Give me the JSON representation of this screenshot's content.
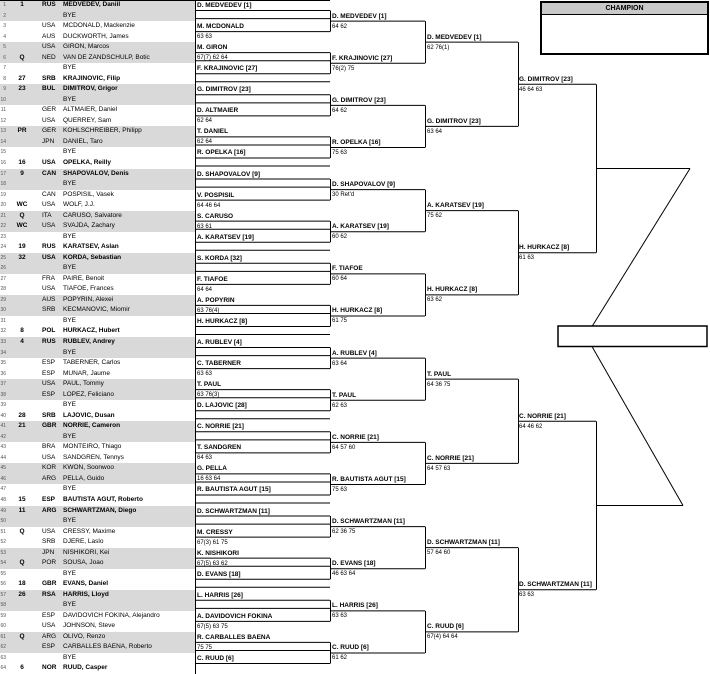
{
  "champion_box": {
    "label": "CHAMPION",
    "winner": ""
  },
  "final_box": {
    "text": ""
  },
  "colors": {
    "row_shade": "#d9d9d9",
    "champion_header_bg": "#c9c9c9",
    "line": "#000000"
  },
  "draw": {
    "entries": [
      {
        "line": 1,
        "seed": "1",
        "country": "RUS",
        "name": "MEDVEDEV, Daniil",
        "seeded": true
      },
      {
        "line": 2,
        "seed": "",
        "country": "",
        "name": "BYE",
        "seeded": false
      },
      {
        "line": 3,
        "seed": "",
        "country": "USA",
        "name": "MCDONALD, Mackenzie",
        "seeded": false
      },
      {
        "line": 4,
        "seed": "",
        "country": "AUS",
        "name": "DUCKWORTH, James",
        "seeded": false
      },
      {
        "line": 5,
        "seed": "",
        "country": "USA",
        "name": "GIRON, Marcos",
        "seeded": false
      },
      {
        "line": 6,
        "seed": "Q",
        "country": "NED",
        "name": "VAN DE ZANDSCHULP, Botic",
        "seeded": false
      },
      {
        "line": 7,
        "seed": "",
        "country": "",
        "name": "BYE",
        "seeded": false
      },
      {
        "line": 8,
        "seed": "27",
        "country": "SRB",
        "name": "KRAJINOVIC, Filip",
        "seeded": true
      },
      {
        "line": 9,
        "seed": "23",
        "country": "BUL",
        "name": "DIMITROV, Grigor",
        "seeded": true
      },
      {
        "line": 10,
        "seed": "",
        "country": "",
        "name": "BYE",
        "seeded": false
      },
      {
        "line": 11,
        "seed": "",
        "country": "GER",
        "name": "ALTMAIER, Daniel",
        "seeded": false
      },
      {
        "line": 12,
        "seed": "",
        "country": "USA",
        "name": "QUERREY, Sam",
        "seeded": false
      },
      {
        "line": 13,
        "seed": "PR",
        "country": "GER",
        "name": "KOHLSCHREIBER, Philipp",
        "seeded": false
      },
      {
        "line": 14,
        "seed": "",
        "country": "JPN",
        "name": "DANIEL, Taro",
        "seeded": false
      },
      {
        "line": 15,
        "seed": "",
        "country": "",
        "name": "BYE",
        "seeded": false
      },
      {
        "line": 16,
        "seed": "16",
        "country": "USA",
        "name": "OPELKA, Reilly",
        "seeded": true
      },
      {
        "line": 17,
        "seed": "9",
        "country": "CAN",
        "name": "SHAPOVALOV, Denis",
        "seeded": true
      },
      {
        "line": 18,
        "seed": "",
        "country": "",
        "name": "BYE",
        "seeded": false
      },
      {
        "line": 19,
        "seed": "",
        "country": "CAN",
        "name": "POSPISIL, Vasek",
        "seeded": false
      },
      {
        "line": 20,
        "seed": "WC",
        "country": "USA",
        "name": "WOLF, J.J.",
        "seeded": false
      },
      {
        "line": 21,
        "seed": "Q",
        "country": "ITA",
        "name": "CARUSO, Salvatore",
        "seeded": false
      },
      {
        "line": 22,
        "seed": "WC",
        "country": "USA",
        "name": "SVAJDA, Zachary",
        "seeded": false
      },
      {
        "line": 23,
        "seed": "",
        "country": "",
        "name": "BYE",
        "seeded": false
      },
      {
        "line": 24,
        "seed": "19",
        "country": "RUS",
        "name": "KARATSEV, Aslan",
        "seeded": true
      },
      {
        "line": 25,
        "seed": "32",
        "country": "USA",
        "name": "KORDA, Sebastian",
        "seeded": true
      },
      {
        "line": 26,
        "seed": "",
        "country": "",
        "name": "BYE",
        "seeded": false
      },
      {
        "line": 27,
        "seed": "",
        "country": "FRA",
        "name": "PAIRE, Benoit",
        "seeded": false
      },
      {
        "line": 28,
        "seed": "",
        "country": "USA",
        "name": "TIAFOE, Frances",
        "seeded": false
      },
      {
        "line": 29,
        "seed": "",
        "country": "AUS",
        "name": "POPYRIN, Alexei",
        "seeded": false
      },
      {
        "line": 30,
        "seed": "",
        "country": "SRB",
        "name": "KECMANOVIC, Miomir",
        "seeded": false
      },
      {
        "line": 31,
        "seed": "",
        "country": "",
        "name": "BYE",
        "seeded": false
      },
      {
        "line": 32,
        "seed": "8",
        "country": "POL",
        "name": "HURKACZ, Hubert",
        "seeded": true
      },
      {
        "line": 33,
        "seed": "4",
        "country": "RUS",
        "name": "RUBLEV, Andrey",
        "seeded": true
      },
      {
        "line": 34,
        "seed": "",
        "country": "",
        "name": "BYE",
        "seeded": false
      },
      {
        "line": 35,
        "seed": "",
        "country": "ESP",
        "name": "TABERNER, Carlos",
        "seeded": false
      },
      {
        "line": 36,
        "seed": "",
        "country": "ESP",
        "name": "MUNAR, Jaume",
        "seeded": false
      },
      {
        "line": 37,
        "seed": "",
        "country": "USA",
        "name": "PAUL, Tommy",
        "seeded": false
      },
      {
        "line": 38,
        "seed": "",
        "country": "ESP",
        "name": "LOPEZ, Feliciano",
        "seeded": false
      },
      {
        "line": 39,
        "seed": "",
        "country": "",
        "name": "BYE",
        "seeded": false
      },
      {
        "line": 40,
        "seed": "28",
        "country": "SRB",
        "name": "LAJOVIC, Dusan",
        "seeded": true
      },
      {
        "line": 41,
        "seed": "21",
        "country": "GBR",
        "name": "NORRIE, Cameron",
        "seeded": true
      },
      {
        "line": 42,
        "seed": "",
        "country": "",
        "name": "BYE",
        "seeded": false
      },
      {
        "line": 43,
        "seed": "",
        "country": "BRA",
        "name": "MONTEIRO, Thiago",
        "seeded": false
      },
      {
        "line": 44,
        "seed": "",
        "country": "USA",
        "name": "SANDGREN, Tennys",
        "seeded": false
      },
      {
        "line": 45,
        "seed": "",
        "country": "KOR",
        "name": "KWON, Soonwoo",
        "seeded": false
      },
      {
        "line": 46,
        "seed": "",
        "country": "ARG",
        "name": "PELLA, Guido",
        "seeded": false
      },
      {
        "line": 47,
        "seed": "",
        "country": "",
        "name": "BYE",
        "seeded": false
      },
      {
        "line": 48,
        "seed": "15",
        "country": "ESP",
        "name": "BAUTISTA AGUT, Roberto",
        "seeded": true
      },
      {
        "line": 49,
        "seed": "11",
        "country": "ARG",
        "name": "SCHWARTZMAN, Diego",
        "seeded": true
      },
      {
        "line": 50,
        "seed": "",
        "country": "",
        "name": "BYE",
        "seeded": false
      },
      {
        "line": 51,
        "seed": "Q",
        "country": "USA",
        "name": "CRESSY, Maxime",
        "seeded": false
      },
      {
        "line": 52,
        "seed": "",
        "country": "SRB",
        "name": "DJERE, Laslo",
        "seeded": false
      },
      {
        "line": 53,
        "seed": "",
        "country": "JPN",
        "name": "NISHIKORI, Kei",
        "seeded": false
      },
      {
        "line": 54,
        "seed": "Q",
        "country": "POR",
        "name": "SOUSA, Joao",
        "seeded": false
      },
      {
        "line": 55,
        "seed": "",
        "country": "",
        "name": "BYE",
        "seeded": false
      },
      {
        "line": 56,
        "seed": "18",
        "country": "GBR",
        "name": "EVANS, Daniel",
        "seeded": true
      },
      {
        "line": 57,
        "seed": "26",
        "country": "RSA",
        "name": "HARRIS, Lloyd",
        "seeded": true
      },
      {
        "line": 58,
        "seed": "",
        "country": "",
        "name": "BYE",
        "seeded": false
      },
      {
        "line": 59,
        "seed": "",
        "country": "ESP",
        "name": "DAVIDOVICH FOKINA, Alejandro",
        "seeded": false
      },
      {
        "line": 60,
        "seed": "",
        "country": "USA",
        "name": "JOHNSON, Steve",
        "seeded": false
      },
      {
        "line": 61,
        "seed": "Q",
        "country": "ARG",
        "name": "OLIVO, Renzo",
        "seeded": false
      },
      {
        "line": 62,
        "seed": "",
        "country": "ESP",
        "name": "CARBALLES BAENA, Roberto",
        "seeded": false
      },
      {
        "line": 63,
        "seed": "",
        "country": "",
        "name": "BYE",
        "seeded": false
      },
      {
        "line": 64,
        "seed": "6",
        "country": "NOR",
        "name": "RUUD, Casper",
        "seeded": true
      }
    ],
    "round2": [
      {
        "name": "D. MEDVEDEV [1]",
        "score": ""
      },
      {
        "name": "M. MCDONALD",
        "score": "63 63"
      },
      {
        "name": "M. GIRON",
        "score": "67(7) 62 64"
      },
      {
        "name": "F. KRAJINOVIC [27]",
        "score": ""
      },
      {
        "name": "G. DIMITROV [23]",
        "score": ""
      },
      {
        "name": "D. ALTMAIER",
        "score": "62 64"
      },
      {
        "name": "T. DANIEL",
        "score": "62 64"
      },
      {
        "name": "R. OPELKA [16]",
        "score": ""
      },
      {
        "name": "D. SHAPOVALOV [9]",
        "score": ""
      },
      {
        "name": "V. POSPISIL",
        "score": "64 46 64"
      },
      {
        "name": "S. CARUSO",
        "score": "63 61"
      },
      {
        "name": "A. KARATSEV [19]",
        "score": ""
      },
      {
        "name": "S. KORDA [32]",
        "score": ""
      },
      {
        "name": "F. TIAFOE",
        "score": "64 64"
      },
      {
        "name": "A. POPYRIN",
        "score": "63 76(4)"
      },
      {
        "name": "H. HURKACZ [8]",
        "score": ""
      },
      {
        "name": "A. RUBLEV [4]",
        "score": ""
      },
      {
        "name": "C. TABERNER",
        "score": "63 63"
      },
      {
        "name": "T. PAUL",
        "score": "63 76(3)"
      },
      {
        "name": "D. LAJOVIC [28]",
        "score": ""
      },
      {
        "name": "C. NORRIE [21]",
        "score": ""
      },
      {
        "name": "T. SANDGREN",
        "score": "64 63"
      },
      {
        "name": "G. PELLA",
        "score": "16 63 64"
      },
      {
        "name": "R. BAUTISTA AGUT [15]",
        "score": ""
      },
      {
        "name": "D. SCHWARTZMAN [11]",
        "score": ""
      },
      {
        "name": "M. CRESSY",
        "score": "67(3) 61 75"
      },
      {
        "name": "K. NISHIKORI",
        "score": "67(5) 63 62"
      },
      {
        "name": "D. EVANS [18]",
        "score": ""
      },
      {
        "name": "L. HARRIS [26]",
        "score": ""
      },
      {
        "name": "A. DAVIDOVICH FOKINA",
        "score": "67(5) 63 75"
      },
      {
        "name": "R. CARBALLES BAENA",
        "score": "75 75"
      },
      {
        "name": "C. RUUD [6]",
        "score": ""
      }
    ],
    "round3": [
      {
        "name": "D. MEDVEDEV [1]",
        "score": "64 62"
      },
      {
        "name": "F. KRAJINOVIC [27]",
        "score": "76(2) 75"
      },
      {
        "name": "G. DIMITROV [23]",
        "score": "64 62"
      },
      {
        "name": "R. OPELKA [16]",
        "score": "75 63"
      },
      {
        "name": "D. SHAPOVALOV [9]",
        "score": "30 Ret'd"
      },
      {
        "name": "A. KARATSEV [19]",
        "score": "60 62"
      },
      {
        "name": "F. TIAFOE",
        "score": "60 64"
      },
      {
        "name": "H. HURKACZ [8]",
        "score": "61 75"
      },
      {
        "name": "A. RUBLEV [4]",
        "score": "63 64"
      },
      {
        "name": "T. PAUL",
        "score": "62 63"
      },
      {
        "name": "C. NORRIE [21]",
        "score": "64 57 60"
      },
      {
        "name": "R. BAUTISTA AGUT [15]",
        "score": "75 63"
      },
      {
        "name": "D. SCHWARTZMAN [11]",
        "score": "62 36 75"
      },
      {
        "name": "D. EVANS [18]",
        "score": "46 63 64"
      },
      {
        "name": "L. HARRIS [26]",
        "score": "63 63"
      },
      {
        "name": "C. RUUD [6]",
        "score": "61 62"
      }
    ],
    "round4": [
      {
        "name": "D. MEDVEDEV [1]",
        "score": "62 76(1)"
      },
      {
        "name": "G. DIMITROV [23]",
        "score": "63 64"
      },
      {
        "name": "A. KARATSEV [19]",
        "score": "75 62"
      },
      {
        "name": "H. HURKACZ [8]",
        "score": "63 62"
      },
      {
        "name": "T. PAUL",
        "score": "64 36 75"
      },
      {
        "name": "C. NORRIE [21]",
        "score": "64 57 63"
      },
      {
        "name": "D. SCHWARTZMAN [11]",
        "score": "57 64 60"
      },
      {
        "name": "C. RUUD [6]",
        "score": "67(4) 64 64"
      }
    ],
    "round5": [
      {
        "name": "G. DIMITROV [23]",
        "score": "46 64 63"
      },
      {
        "name": "H. HURKACZ [8]",
        "score": "61 63"
      },
      {
        "name": "C. NORRIE [21]",
        "score": "64 46 62"
      },
      {
        "name": "D. SCHWARTZMAN [11]",
        "score": "63 63"
      }
    ]
  }
}
